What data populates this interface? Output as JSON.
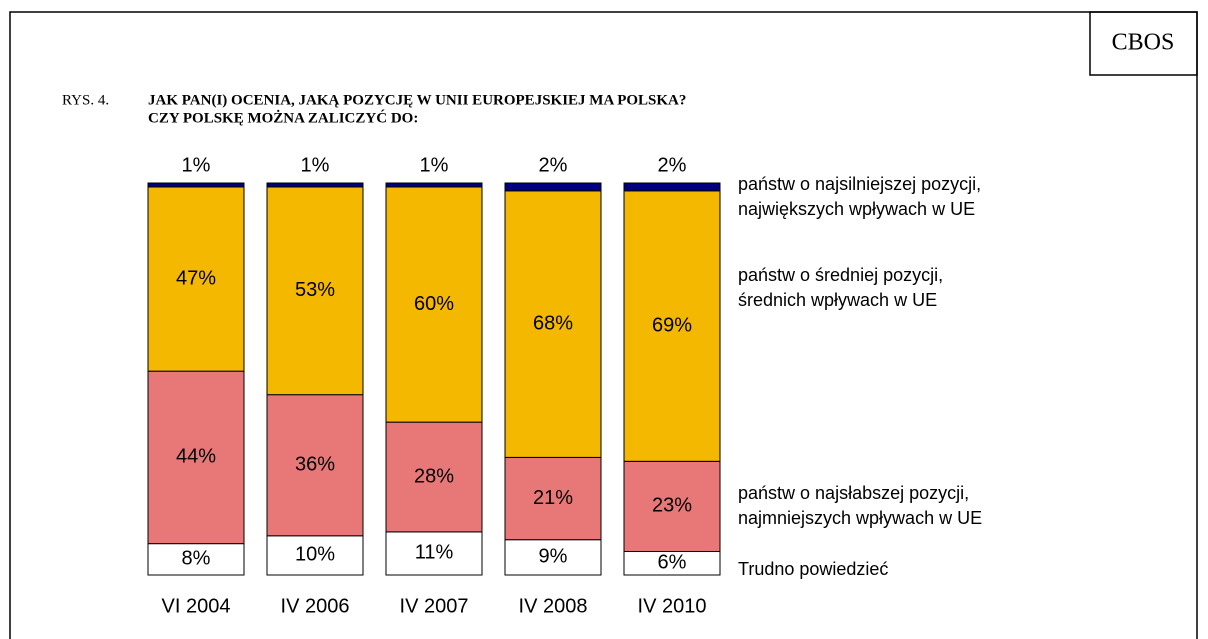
{
  "chart_data": {
    "type": "bar",
    "stacked": true,
    "source": "CBOS",
    "figure_label": "RYS. 4.",
    "title": "JAK PAN(I) OCENIA, JAKĄ POZYCJĘ W UNII EUROPEJSKIEJ MA POLSKA?",
    "subtitle": "CZY POLSKĘ MOŻNA ZALICZYĆ DO:",
    "categories": [
      "VI 2004",
      "IV 2006",
      "IV 2007",
      "IV 2008",
      "IV 2010"
    ],
    "series": [
      {
        "name": "Trudno powiedzieć",
        "color": "#ffffff",
        "values": [
          8,
          10,
          11,
          9,
          6
        ],
        "value_labels": [
          "8%",
          "10%",
          "11%",
          "9%",
          "6%"
        ]
      },
      {
        "name": "państw o najsłabszej pozycji,\nnajmniejszych wpływach w UE",
        "color": "#e87878",
        "values": [
          44,
          36,
          28,
          21,
          23
        ],
        "value_labels": [
          "44%",
          "36%",
          "28%",
          "21%",
          "23%"
        ]
      },
      {
        "name": "państw o średniej pozycji,\nśrednich wpływach w UE",
        "color": "#f5b800",
        "values": [
          47,
          53,
          60,
          68,
          69
        ],
        "value_labels": [
          "47%",
          "53%",
          "60%",
          "68%",
          "69%"
        ]
      },
      {
        "name": "państw o najsilniejszej pozycji,\nnajwiększych wpływach w UE",
        "color": "#000080",
        "values": [
          1,
          1,
          1,
          2,
          2
        ],
        "value_labels": [
          "1%",
          "1%",
          "1%",
          "2%",
          "2%"
        ]
      }
    ]
  }
}
